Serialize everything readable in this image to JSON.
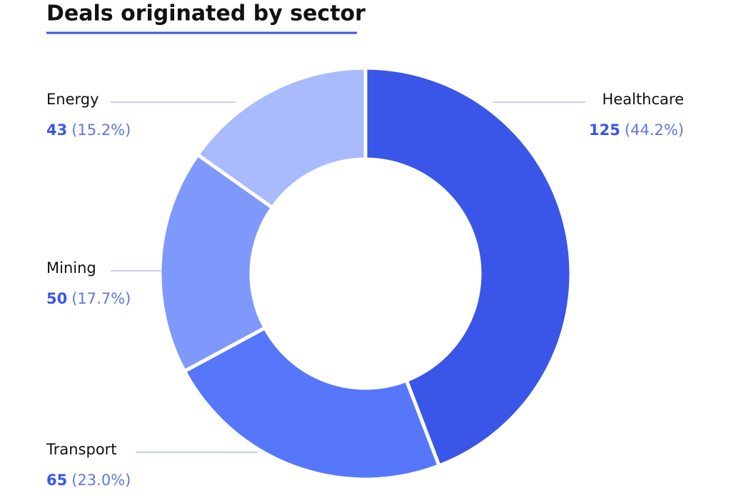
{
  "chart_data": {
    "type": "donut",
    "title": "Deals originated by sector",
    "categories": [
      "Healthcare",
      "Transport",
      "Mining",
      "Energy"
    ],
    "values": [
      125,
      65,
      50,
      43
    ],
    "percent_labels": [
      "(44.2%)",
      "(23.0%)",
      "(17.7%)",
      "(15.2%)"
    ],
    "colors": [
      "#3a56e8",
      "#5777fb",
      "#7f98fb",
      "#a9bbfc"
    ]
  }
}
